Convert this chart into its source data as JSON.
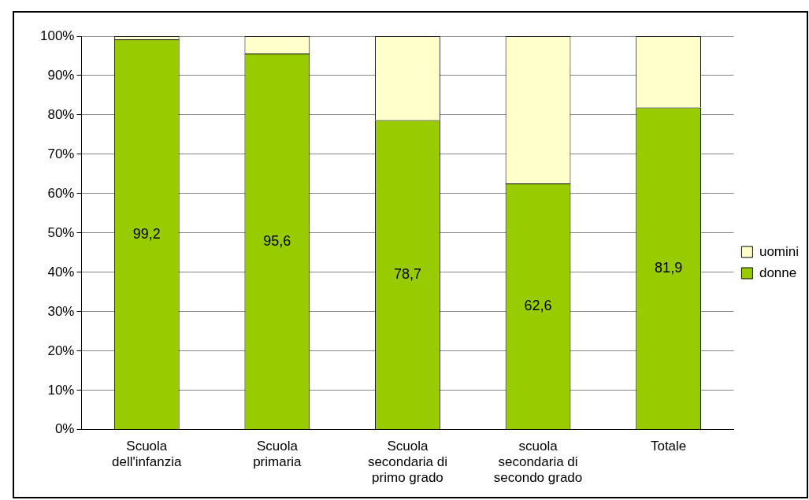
{
  "chart_data": {
    "type": "bar",
    "stacked": true,
    "categories": [
      "Scuola dell'infanzia",
      "Scuola primaria",
      "Scuola secondaria di primo grado",
      "scuola secondaria di secondo grado",
      "Totale"
    ],
    "series": [
      {
        "name": "donne",
        "color": "#99cc00",
        "values": [
          99.2,
          95.6,
          78.7,
          62.6,
          81.9
        ],
        "value_labels": [
          "99,2",
          "95,6",
          "78,7",
          "62,6",
          "81,9"
        ]
      },
      {
        "name": "uomini",
        "color": "#ffffcc",
        "values": [
          0.8,
          4.4,
          21.3,
          37.4,
          18.1
        ]
      }
    ],
    "ylim": [
      0,
      100
    ],
    "yticks": [
      {
        "value": 0,
        "label": "0%"
      },
      {
        "value": 10,
        "label": "10%"
      },
      {
        "value": 20,
        "label": "20%"
      },
      {
        "value": 30,
        "label": "30%"
      },
      {
        "value": 40,
        "label": "40%"
      },
      {
        "value": 50,
        "label": "50%"
      },
      {
        "value": 60,
        "label": "60%"
      },
      {
        "value": 70,
        "label": "70%"
      },
      {
        "value": 80,
        "label": "80%"
      },
      {
        "value": 90,
        "label": "90%"
      },
      {
        "value": 100,
        "label": "100%"
      }
    ],
    "grid": "y",
    "legend": "right"
  }
}
